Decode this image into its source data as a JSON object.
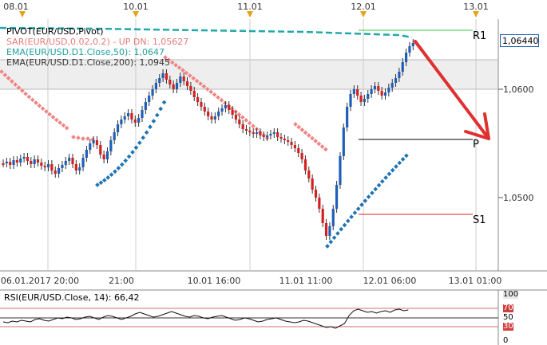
{
  "top_axis": {
    "dates": [
      "08.01",
      "10.01",
      "11.01",
      "12.01",
      "13.01"
    ]
  },
  "legend": {
    "pivot": "PIVOT(EUR/USD,Pivot)",
    "sar": "SAR(EUR/USD,0.02,0.2) -  UP  DN: 1,05627",
    "ema50": "EMA(EUR/USD.D1.Close,50): 1,0647",
    "ema200": "EMA(EUR/USD.D1.Close,200): 1,0945"
  },
  "price_axis": {
    "current": "1,06440",
    "ticks": [
      "1,0600",
      "1,0500"
    ]
  },
  "levels": {
    "r1": "R1",
    "p": "P",
    "s1": "S1"
  },
  "time_axis": {
    "labels": [
      "06.01.2017 20:00",
      "21:00",
      "10.01 16:00",
      "11.01 11:00",
      "12.01 06:00",
      "13.01 01:00"
    ]
  },
  "rsi": {
    "title": "RSI(EUR/USD.Close, 14): 66,42",
    "scale": [
      "100",
      "70",
      "50",
      "30",
      "0"
    ]
  },
  "colors": {
    "bull": "#1f5fb8",
    "bear": "#d62020",
    "sar_up": "#1f74b4",
    "sar_dn": "#f08585",
    "ema50": "#20a8a8",
    "r1_line": "#2ecc40",
    "s1_line": "#e02020",
    "arrow": "#e03030",
    "date_marker": "#e8a21a"
  },
  "icons": {
    "date_marker": "triangle-down",
    "forecast_arrow": "arrow-down-right"
  }
}
